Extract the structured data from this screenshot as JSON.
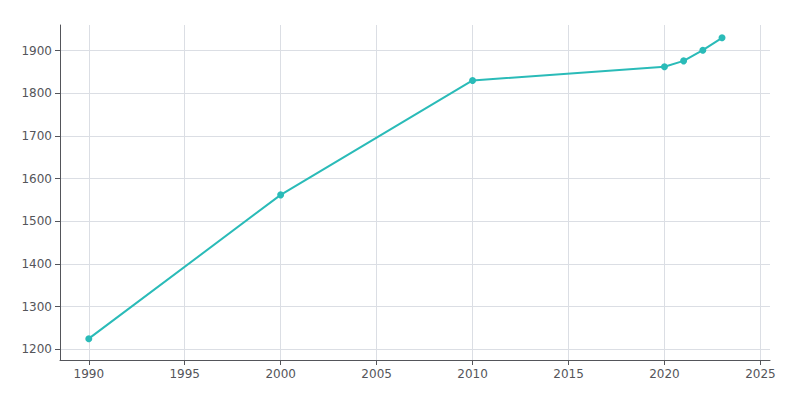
{
  "chart_data": {
    "type": "line",
    "x": [
      1990,
      2000,
      2010,
      2020,
      2021,
      2022,
      2023
    ],
    "values": [
      1225,
      1562,
      1830,
      1862,
      1876,
      1901,
      1930
    ],
    "color": "#2abbb8",
    "marker": "circle",
    "xlim": [
      1988.5,
      2025.5
    ],
    "ylim": [
      1175,
      1960
    ],
    "xticks": [
      1990,
      1995,
      2000,
      2005,
      2010,
      2015,
      2020,
      2025
    ],
    "yticks": [
      1200,
      1300,
      1400,
      1500,
      1600,
      1700,
      1800,
      1900
    ],
    "grid": true
  }
}
